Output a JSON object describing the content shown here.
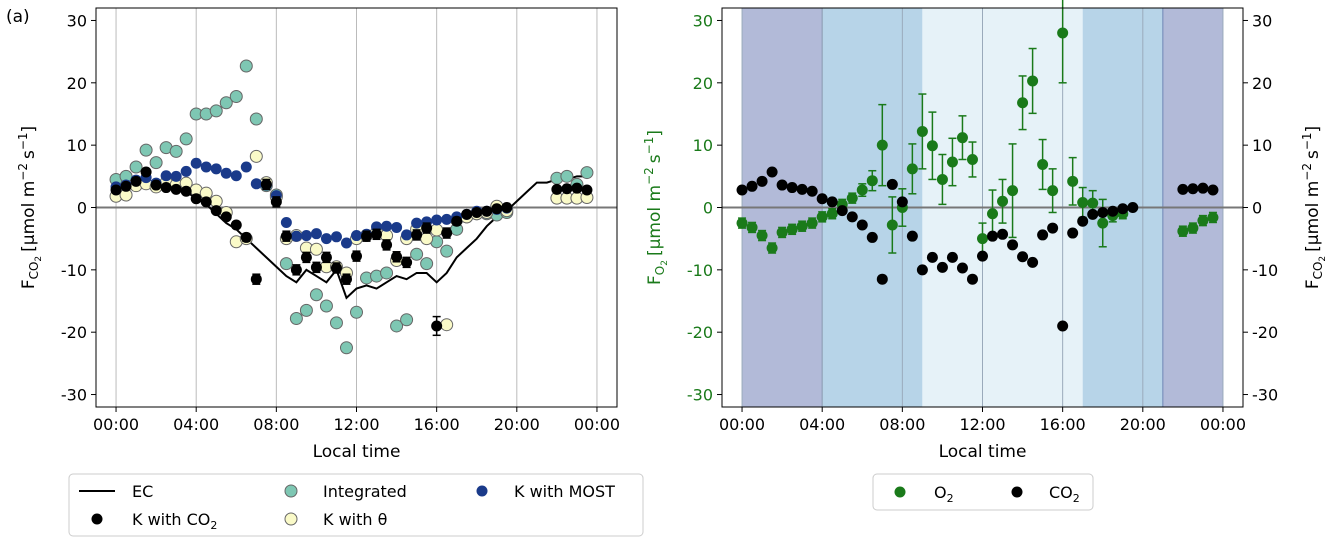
{
  "figure": {
    "panel_label": "(a)"
  },
  "colors": {
    "ec": "#000000",
    "k_co2": "#000000",
    "integrated": "#7ec7b3",
    "k_theta": "#fafac8",
    "k_most": "#1a3a8a",
    "o2": "#1a7a1a",
    "co2": "#000000",
    "night": "#b2bad8",
    "transition": "#b7d4e8",
    "day": "#e6f2f8",
    "zero_line": "#777777",
    "grid": "#bbbbbb"
  },
  "chart_data": [
    {
      "type": "line",
      "xlabel": "Local time",
      "ylabel": "F_CO2 [μmol m⁻² s⁻¹]",
      "ylabel_main": "F",
      "ylabel_sub": "CO",
      "ylabel_subsub": "2",
      "ylabel_units": "[μmol m",
      "ylabel_exp1": "−2",
      "ylabel_mid": "s",
      "ylabel_exp2": "−1",
      "ylabel_end": "]",
      "xlim": [
        -1,
        25
      ],
      "ylim": [
        -32,
        32
      ],
      "xticks": [
        "00:00",
        "04:00",
        "08:00",
        "12:00",
        "16:00",
        "20:00",
        "00:00"
      ],
      "yticks": [
        -30,
        -20,
        -10,
        0,
        10,
        20,
        30
      ],
      "grid": "vertical",
      "legend_position": "below",
      "legend": [
        {
          "label": "EC",
          "marker": "line"
        },
        {
          "label": "K with CO",
          "sub": "2",
          "marker": "black"
        },
        {
          "label": "Integrated",
          "marker": "integrated"
        },
        {
          "label": "K with θ",
          "marker": "theta"
        },
        {
          "label": "K with MOST",
          "marker": "most"
        }
      ],
      "ec": {
        "x": [
          0.5,
          1,
          1.5,
          2,
          2.5,
          3,
          3.5,
          4,
          4.5,
          5,
          5.5,
          6,
          6.5,
          7,
          7.5,
          8,
          8.5,
          9,
          9.5,
          10,
          10.5,
          11,
          11.5,
          12,
          12.5,
          13,
          13.5,
          14,
          14.5,
          15,
          15.5,
          16,
          16.5,
          17,
          17.5,
          18,
          18.5,
          19,
          19.5,
          20,
          20.5,
          21,
          21.5,
          22,
          22.5,
          23,
          23.5
        ],
        "y": [
          4.5,
          4.5,
          4.5,
          4.0,
          3.5,
          3.0,
          2.5,
          1.5,
          0.5,
          -1.0,
          -2.5,
          -3.5,
          -5.0,
          -6.5,
          -8.0,
          -9.5,
          -11.0,
          -12.0,
          -10.0,
          -11.0,
          -12.0,
          -10.0,
          -14.5,
          -13.0,
          -12.5,
          -13.0,
          -12.0,
          -11.0,
          -11.5,
          -10.5,
          -10.5,
          -12.0,
          -10.5,
          -8.0,
          -6.5,
          -5.0,
          -3.0,
          -1.5,
          -0.5,
          1.0,
          2.5,
          4.0,
          4.0,
          4.5,
          4.5,
          5.0,
          5.0
        ]
      },
      "k_co2": {
        "x": [
          0,
          0.5,
          1,
          1.5,
          2,
          2.5,
          3,
          3.5,
          4,
          4.5,
          5,
          5.5,
          6,
          6.5,
          7,
          7.5,
          8,
          8.5,
          9,
          9.5,
          10,
          10.5,
          11,
          11.5,
          12,
          12.5,
          13,
          13.5,
          14,
          14.5,
          15,
          15.5,
          16,
          16.5,
          17,
          17.5,
          18,
          18.5,
          19,
          19.5,
          22,
          22.5,
          23,
          23.5
        ],
        "y": [
          2.8,
          3.4,
          4.2,
          5.7,
          3.6,
          3.2,
          2.9,
          2.6,
          1.4,
          0.9,
          -0.5,
          -1.5,
          -2.8,
          -4.8,
          -11.5,
          3.7,
          0.9,
          -4.6,
          -10.0,
          -8.0,
          -9.6,
          -8.0,
          -9.7,
          -11.5,
          -7.8,
          -4.6,
          -4.3,
          -6.0,
          -7.9,
          -8.8,
          -4.4,
          -3.3,
          -19.0,
          -4.1,
          -2.2,
          -1.1,
          -0.8,
          -0.6,
          -0.2,
          0.0,
          2.9,
          3.0,
          3.1,
          2.8
        ],
        "err": [
          0.4,
          0.4,
          0.4,
          0.4,
          0.4,
          0.4,
          0.4,
          0.4,
          0.4,
          0.4,
          0.4,
          0.4,
          0.5,
          0.6,
          0.8,
          0.8,
          0.8,
          0.8,
          0.8,
          0.8,
          0.8,
          0.8,
          0.8,
          0.8,
          0.8,
          0.8,
          0.8,
          0.8,
          0.8,
          0.8,
          0.8,
          0.8,
          1.5,
          0.8,
          0.6,
          0.5,
          0.4,
          0.4,
          0.4,
          0.4,
          0.4,
          0.4,
          0.4,
          0.4
        ]
      },
      "integrated": {
        "x": [
          0,
          0.5,
          1,
          1.5,
          2,
          2.5,
          3,
          3.5,
          4,
          4.5,
          5,
          5.5,
          6,
          6.5,
          7,
          7.5,
          8,
          8.5,
          9,
          9.5,
          10,
          10.5,
          11,
          11.5,
          12,
          12.5,
          13,
          13.5,
          14,
          14.5,
          15,
          15.5,
          16,
          16.5,
          17,
          17.5,
          18,
          18.5,
          19,
          19.5,
          22,
          22.5,
          23,
          23.5
        ],
        "y": [
          4.5,
          5.0,
          6.5,
          9.2,
          7.2,
          9.6,
          9.0,
          11.0,
          15.0,
          15.0,
          15.5,
          16.8,
          17.8,
          22.7,
          14.2,
          3.5,
          2.0,
          -9.0,
          -17.8,
          -16.5,
          -14.0,
          -15.8,
          -18.5,
          -22.5,
          -16.8,
          -11.3,
          -11.0,
          -10.5,
          -19.0,
          -18.0,
          -7.5,
          -9.0,
          -5.5,
          -7.0,
          -3.5,
          -1.5,
          -1.0,
          -1.0,
          -1.2,
          -0.8,
          4.7,
          5.0,
          3.7,
          5.6
        ]
      },
      "k_theta": {
        "x": [
          0,
          0.5,
          1,
          1.5,
          2,
          2.5,
          3,
          3.5,
          4,
          4.5,
          5,
          5.5,
          6,
          6.5,
          7,
          7.5,
          8,
          8.5,
          9,
          9.5,
          10,
          10.5,
          11,
          11.5,
          12,
          12.5,
          13,
          13.5,
          14,
          14.5,
          15,
          15.5,
          16,
          16.5,
          17,
          17.5,
          18,
          18.5,
          19,
          19.5,
          22,
          22.5,
          23,
          23.5
        ],
        "y": [
          1.8,
          2.0,
          3.5,
          3.8,
          3.3,
          4.0,
          3.6,
          3.9,
          2.8,
          2.3,
          1.0,
          -0.8,
          -5.5,
          -5.0,
          8.2,
          4.0,
          1.7,
          -5.0,
          -4.5,
          -6.5,
          -6.7,
          -9.5,
          -9.5,
          -10.5,
          -5.0,
          -4.5,
          -4.0,
          -4.5,
          -8.5,
          -5.0,
          -3.5,
          -5.0,
          -3.6,
          -18.8,
          -2.0,
          -1.5,
          -1.0,
          -0.8,
          0.2,
          -0.5,
          1.5,
          1.5,
          1.5,
          1.6
        ]
      },
      "k_most": {
        "x": [
          0,
          0.5,
          1,
          1.5,
          2,
          2.5,
          3,
          3.5,
          4,
          4.5,
          5,
          5.5,
          6,
          6.5,
          7,
          7.5,
          8,
          8.5,
          9,
          9.5,
          10,
          10.5,
          11,
          11.5,
          12,
          12.5,
          13,
          13.5,
          14,
          14.5,
          15,
          15.5,
          16,
          16.5,
          17,
          17.5,
          18,
          18.5,
          19,
          19.5
        ],
        "y": [
          3.3,
          3.6,
          4.4,
          4.8,
          3.9,
          5.1,
          5.0,
          5.8,
          7.1,
          6.5,
          6.2,
          5.5,
          5.1,
          6.5,
          3.8,
          3.6,
          1.9,
          -2.4,
          -4.6,
          -4.5,
          -4.2,
          -5.0,
          -4.7,
          -5.7,
          -4.5,
          -4.3,
          -3.1,
          -3.0,
          -3.2,
          -4.4,
          -2.5,
          -2.3,
          -2.0,
          -1.9,
          -1.5,
          -1.1,
          -0.6,
          -0.6,
          -0.3,
          -0.1
        ]
      }
    },
    {
      "type": "scatter",
      "xlabel": "Local time",
      "ylabel_left": "F_O2 [μmol m⁻² s⁻¹]",
      "ylabel_left_main": "F",
      "ylabel_left_sub": "O",
      "ylabel_left_subsub": "2",
      "ylabel_right_main": "F",
      "ylabel_right_sub": "CO",
      "ylabel_right_subsub": "2",
      "ylabel_units": "[μmol m",
      "ylabel_exp1": "−2",
      "ylabel_mid": "s",
      "ylabel_exp2": "−1",
      "ylabel_end": "]",
      "xlim": [
        -1,
        25
      ],
      "ylim": [
        -32,
        32
      ],
      "xticks": [
        "00:00",
        "04:00",
        "08:00",
        "12:00",
        "16:00",
        "20:00",
        "00:00"
      ],
      "yticks": [
        -30,
        -20,
        -10,
        0,
        10,
        20,
        30
      ],
      "grid": "vertical",
      "legend_position": "below",
      "legend": [
        {
          "label": "O",
          "sub": "2",
          "marker": "o2"
        },
        {
          "label": "CO",
          "sub": "2",
          "marker": "co2"
        }
      ],
      "shading": [
        {
          "from": 0,
          "to": 4,
          "kind": "night"
        },
        {
          "from": 4,
          "to": 9,
          "kind": "transition"
        },
        {
          "from": 9,
          "to": 17,
          "kind": "day"
        },
        {
          "from": 17,
          "to": 21,
          "kind": "transition"
        },
        {
          "from": 21,
          "to": 24,
          "kind": "night"
        }
      ],
      "o2": {
        "x": [
          0,
          0.5,
          1,
          1.5,
          2,
          2.5,
          3,
          3.5,
          4,
          4.5,
          5,
          5.5,
          6,
          6.5,
          7,
          7.5,
          8,
          8.5,
          9,
          9.5,
          10,
          10.5,
          11,
          11.5,
          12,
          12.5,
          13,
          13.5,
          14,
          14.5,
          15,
          15.5,
          16,
          16.5,
          17,
          17.5,
          18,
          18.5,
          19,
          22,
          22.5,
          23,
          23.5
        ],
        "y": [
          -2.5,
          -3.2,
          -4.5,
          -6.5,
          -4.0,
          -3.5,
          -3.0,
          -2.5,
          -1.5,
          -1.0,
          0.5,
          1.5,
          2.8,
          4.3,
          10.0,
          -2.8,
          0.0,
          6.2,
          12.2,
          9.9,
          4.5,
          7.3,
          11.2,
          7.7,
          -5.0,
          -1.0,
          1.0,
          2.7,
          16.8,
          20.3,
          6.9,
          2.7,
          28.0,
          4.2,
          0.8,
          0.7,
          -2.5,
          -1.3,
          -1.0,
          -3.8,
          -3.3,
          -2.1,
          -1.6
        ],
        "err": [
          0.8,
          0.8,
          0.8,
          0.8,
          0.8,
          0.8,
          0.8,
          0.8,
          0.8,
          0.8,
          0.8,
          0.8,
          1.0,
          1.6,
          6.5,
          4.5,
          3.0,
          4.0,
          6.0,
          5.4,
          4.0,
          3.8,
          3.5,
          2.8,
          2.5,
          3.8,
          3.5,
          7.5,
          4.3,
          5.2,
          4.0,
          3.5,
          8.0,
          3.8,
          2.4,
          2.0,
          3.8,
          1.0,
          0.8,
          0.8,
          0.8,
          0.8,
          0.8
        ]
      },
      "co2": {
        "x": [
          0,
          0.5,
          1,
          1.5,
          2,
          2.5,
          3,
          3.5,
          4,
          4.5,
          5,
          5.5,
          6,
          6.5,
          7,
          7.5,
          8,
          8.5,
          9,
          9.5,
          10,
          10.5,
          11,
          11.5,
          12,
          12.5,
          13,
          13.5,
          14,
          14.5,
          15,
          15.5,
          16,
          16.5,
          17,
          17.5,
          18,
          18.5,
          19,
          19.5,
          22,
          22.5,
          23,
          23.5
        ],
        "y": [
          2.8,
          3.4,
          4.2,
          5.7,
          3.6,
          3.2,
          2.9,
          2.6,
          1.4,
          0.9,
          -0.5,
          -1.5,
          -2.8,
          -4.8,
          -11.5,
          3.7,
          0.9,
          -4.6,
          -10.0,
          -8.0,
          -9.6,
          -8.0,
          -9.7,
          -11.5,
          -7.8,
          -4.6,
          -4.3,
          -6.0,
          -7.9,
          -8.8,
          -4.4,
          -3.3,
          -19.0,
          -4.1,
          -2.2,
          -1.1,
          -0.8,
          -0.6,
          -0.2,
          0.0,
          2.9,
          3.0,
          3.1,
          2.8
        ]
      }
    }
  ]
}
